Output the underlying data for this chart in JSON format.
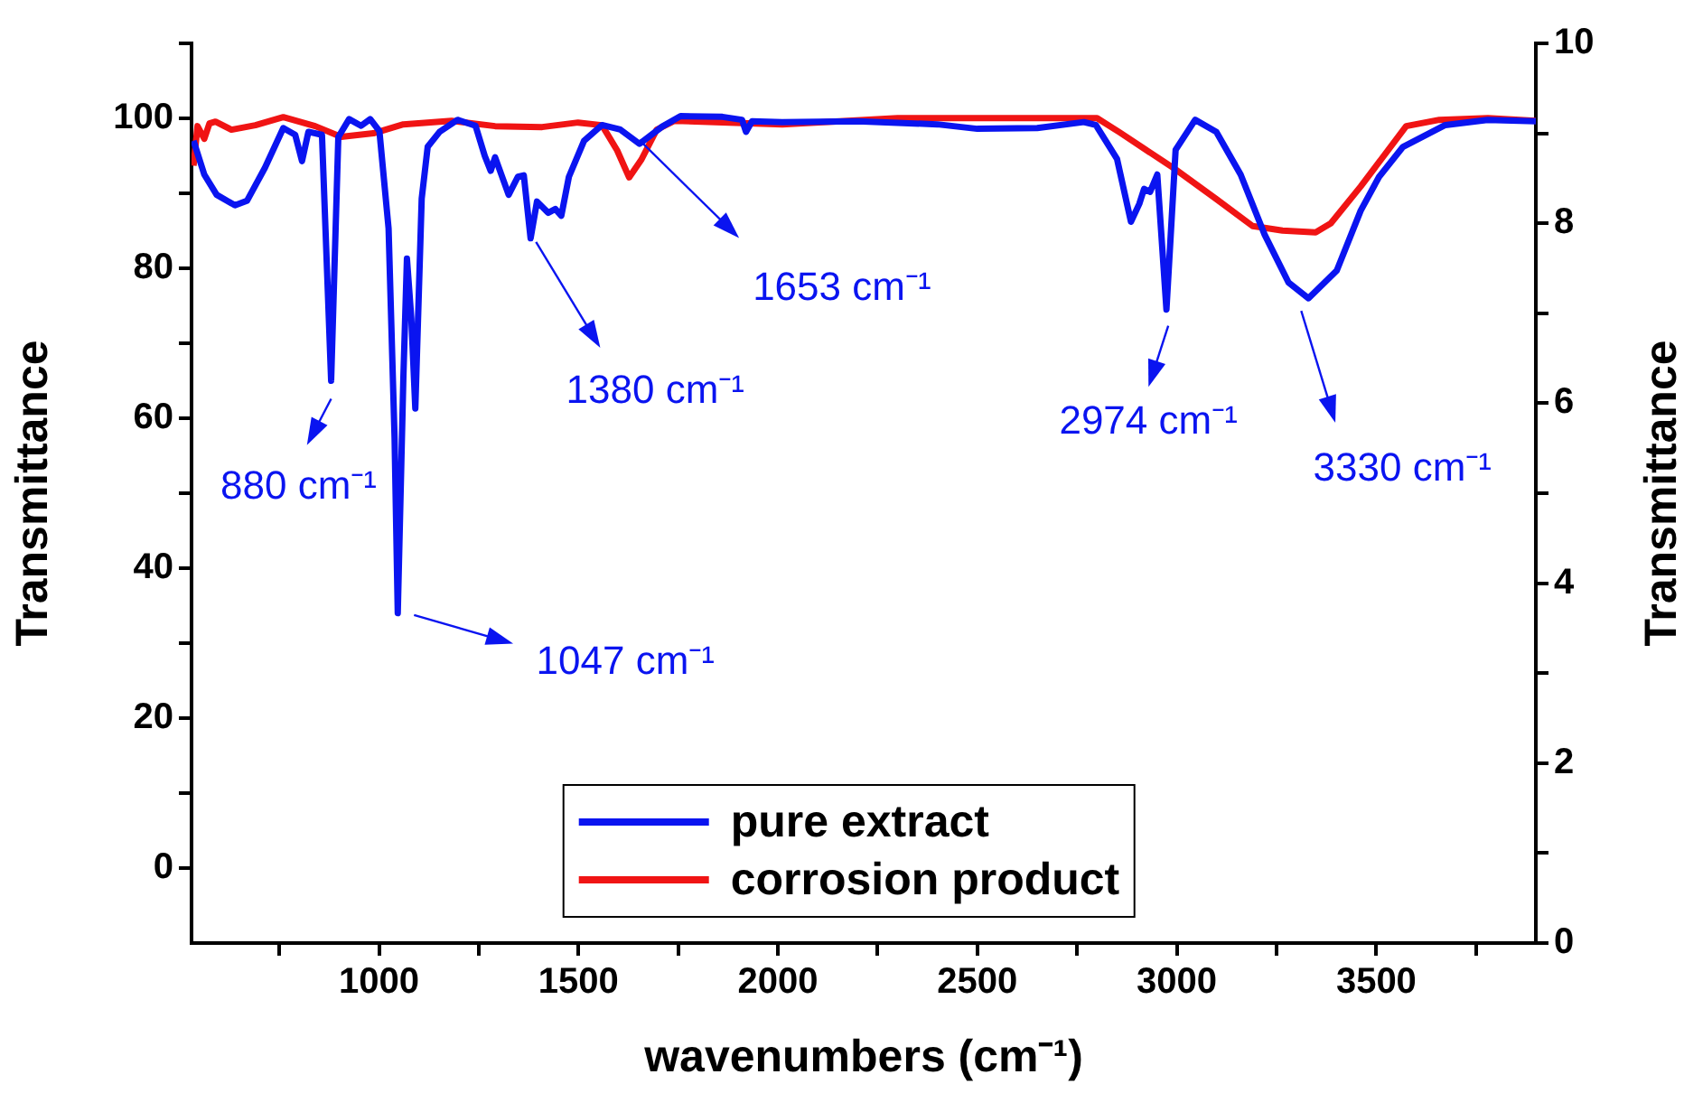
{
  "chart_data": {
    "type": "line",
    "xlabel": "wavenumbers (cm⁻¹)",
    "ylabel": "Transmittance",
    "y2label": "Transmittance",
    "xlim": [
      530,
      3900
    ],
    "xticks": [
      {
        "value": 750,
        "label": null
      },
      1000,
      {
        "value": 1250,
        "label": null
      },
      1500,
      {
        "value": 1750,
        "label": null
      },
      2000,
      {
        "value": 2250,
        "label": null
      },
      2500,
      {
        "value": 2750,
        "label": null
      },
      3000,
      {
        "value": 3250,
        "label": null
      },
      3500,
      {
        "value": 3750,
        "label": null
      }
    ],
    "ylim": [
      -10,
      110
    ],
    "yticks": [
      0,
      {
        "value": 10,
        "label": null
      },
      20,
      {
        "value": 30,
        "label": null
      },
      40,
      {
        "value": 50,
        "label": null
      },
      60,
      {
        "value": 70,
        "label": null
      },
      80,
      {
        "value": 90,
        "label": null
      },
      100,
      {
        "value": 110,
        "label": null
      }
    ],
    "y2lim": [
      0,
      10
    ],
    "y2ticks": [
      0,
      {
        "value": 1,
        "label": null
      },
      2,
      {
        "value": 3,
        "label": null
      },
      4,
      {
        "value": 5,
        "label": null
      },
      6,
      {
        "value": 7,
        "label": null
      },
      8,
      {
        "value": 9,
        "label": null
      },
      10
    ],
    "grid": false,
    "legend": "bottom",
    "marker": "none",
    "line_style": "solid",
    "series": [
      {
        "name": "pure extract",
        "color": "#0a14f0",
        "x": [
          535,
          562,
          593,
          639,
          669,
          714,
          760,
          790,
          807,
          823,
          857,
          880,
          898,
          925,
          955,
          978,
          1001,
          1024,
          1039,
          1047,
          1061,
          1070,
          1081,
          1091,
          1107,
          1122,
          1152,
          1197,
          1242,
          1265,
          1280,
          1291,
          1325,
          1348,
          1363,
          1380,
          1396,
          1424,
          1442,
          1457,
          1476,
          1514,
          1559,
          1605,
          1653,
          1710,
          1756,
          1861,
          1910,
          1920,
          1935,
          2011,
          2200,
          2400,
          2500,
          2650,
          2767,
          2797,
          2850,
          2885,
          2906,
          2918,
          2933,
          2951,
          2974,
          2997,
          3046,
          3099,
          3160,
          3220,
          3280,
          3330,
          3401,
          3461,
          3507,
          3567,
          3673,
          3779,
          3900
        ],
        "values": [
          97,
          92.5,
          89.8,
          88.4,
          89,
          93.4,
          98.7,
          97.8,
          94.3,
          98.2,
          97.8,
          65,
          97.5,
          99.9,
          99,
          99.9,
          98.3,
          85.3,
          57.4,
          34,
          65.3,
          81.3,
          73.3,
          61.3,
          89.3,
          96.2,
          98.2,
          99.8,
          99,
          95,
          93,
          94.8,
          89.8,
          92.2,
          92.4,
          84,
          88.9,
          87.4,
          87.9,
          87,
          92.2,
          97,
          99.1,
          98.5,
          96.6,
          98.9,
          100.3,
          100.2,
          99.8,
          98.2,
          99.6,
          99.5,
          99.6,
          99.2,
          98.6,
          98.7,
          99.5,
          99.1,
          94.6,
          86.2,
          88.6,
          90.6,
          90.2,
          92.5,
          74.5,
          95.8,
          99.8,
          98.2,
          92.5,
          84.5,
          78.1,
          76,
          79.7,
          87.7,
          92.2,
          96.2,
          99.1,
          99.8,
          99.6
        ]
      },
      {
        "name": "corrosion product",
        "color": "#f01414",
        "axis": "y2",
        "x": [
          535,
          545,
          562,
          575,
          590,
          630,
          690,
          760,
          840,
          905,
          986,
          1061,
          1182,
          1291,
          1409,
          1499,
          1559,
          1597,
          1627,
          1658,
          1696,
          1741,
          2011,
          2300,
          2800,
          2857,
          2993,
          3099,
          3190,
          3265,
          3348,
          3386,
          3461,
          3575,
          3658,
          3780,
          3900
        ],
        "values": [
          8.64,
          9.08,
          8.94,
          9.11,
          9.13,
          9.04,
          9.09,
          9.18,
          9.08,
          8.96,
          9.0,
          9.1,
          9.14,
          9.08,
          9.07,
          9.12,
          9.09,
          8.81,
          8.51,
          8.71,
          9.04,
          9.14,
          9.1,
          9.17,
          9.17,
          9.01,
          8.61,
          8.27,
          7.97,
          7.92,
          7.9,
          8.0,
          8.41,
          9.08,
          9.15,
          9.17,
          9.14
        ]
      }
    ],
    "annotations": [
      {
        "text": "880 cm⁻¹",
        "x": 880,
        "y": 65
      },
      {
        "text": "1047 cm⁻¹",
        "x": 1047,
        "y": 34
      },
      {
        "text": "1380 cm⁻¹",
        "x": 1380,
        "y": 84
      },
      {
        "text": "1653 cm⁻¹",
        "x": 1653,
        "y": 96.6
      },
      {
        "text": "2974 cm⁻¹",
        "x": 2974,
        "y": 74.5
      },
      {
        "text": "3330 cm⁻¹",
        "x": 3330,
        "y": 76
      }
    ]
  }
}
